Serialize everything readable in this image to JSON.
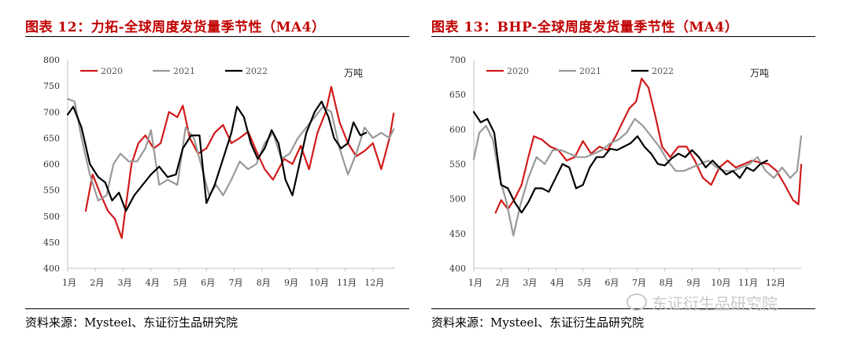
{
  "charts": [
    {
      "title": "图表 12：力拓-全球周度发货量季节性（MA4）",
      "source": "资料来源：Mysteel、东证衍生品研究院"
    },
    {
      "title": "图表 13：BHP-全球周度发货量季节性（MA4）",
      "source": "资料来源：Mysteel、东证衍生品研究院"
    }
  ],
  "watermark": "东证衍生品研究院",
  "chart_data": [
    {
      "type": "line",
      "title": "图表 12：力拓-全球周度发货量季节性（MA4）",
      "unit_label": "万吨",
      "xlabel": "",
      "ylabel": "",
      "ylim": [
        400,
        800
      ],
      "yticks": [
        400,
        450,
        500,
        550,
        600,
        650,
        700,
        750,
        800
      ],
      "xlim": [
        1,
        12.8
      ],
      "xticks": [
        "1月",
        "2月",
        "3月",
        "4月",
        "5月",
        "6月",
        "7月",
        "8月",
        "9月",
        "10月",
        "11月",
        "12月"
      ],
      "grid": false,
      "legend": "top",
      "series": [
        {
          "name": "2020",
          "color": "#d11a1a",
          "x": [
            1.65,
            1.9,
            2.2,
            2.45,
            2.7,
            2.95,
            3.1,
            3.3,
            3.55,
            3.8,
            4.1,
            4.35,
            4.65,
            4.95,
            5.15,
            5.4,
            5.7,
            6.0,
            6.3,
            6.6,
            6.9,
            7.2,
            7.5,
            7.8,
            8.1,
            8.4,
            8.8,
            9.1,
            9.4,
            9.7,
            10.0,
            10.3,
            10.5,
            10.8,
            11.1,
            11.4,
            11.7,
            12.0,
            12.3,
            12.6,
            12.75
          ],
          "y": [
            510,
            580,
            540,
            510,
            495,
            458,
            520,
            600,
            640,
            655,
            630,
            640,
            700,
            690,
            712,
            650,
            620,
            630,
            660,
            675,
            640,
            650,
            662,
            625,
            590,
            570,
            610,
            600,
            635,
            590,
            660,
            700,
            748,
            680,
            640,
            615,
            625,
            640,
            590,
            650,
            697
          ]
        },
        {
          "name": "2021",
          "color": "#999999",
          "x": [
            1.0,
            1.25,
            1.5,
            1.8,
            2.1,
            2.4,
            2.65,
            2.9,
            3.2,
            3.5,
            3.8,
            4.0,
            4.3,
            4.6,
            4.95,
            5.25,
            5.55,
            5.85,
            6.1,
            6.35,
            6.6,
            6.9,
            7.2,
            7.5,
            7.8,
            8.1,
            8.4,
            8.7,
            9.0,
            9.3,
            9.6,
            9.9,
            10.2,
            10.5,
            10.8,
            11.1,
            11.4,
            11.7,
            12.0,
            12.3,
            12.6,
            12.75
          ],
          "y": [
            725,
            720,
            650,
            580,
            530,
            540,
            600,
            620,
            605,
            605,
            630,
            665,
            560,
            570,
            560,
            670,
            650,
            590,
            540,
            560,
            540,
            570,
            605,
            590,
            600,
            640,
            660,
            610,
            620,
            650,
            670,
            690,
            710,
            700,
            630,
            580,
            620,
            670,
            650,
            660,
            650,
            667
          ]
        },
        {
          "name": "2022",
          "color": "#000000",
          "x": [
            1.0,
            1.2,
            1.5,
            1.8,
            2.1,
            2.35,
            2.6,
            2.85,
            3.1,
            3.4,
            3.7,
            4.0,
            4.3,
            4.6,
            4.9,
            5.15,
            5.45,
            5.75,
            6.0,
            6.3,
            6.6,
            6.9,
            7.1,
            7.35,
            7.6,
            7.85,
            8.1,
            8.35,
            8.6,
            8.85,
            9.1,
            9.35,
            9.6,
            9.9,
            10.15,
            10.4,
            10.6,
            10.85,
            11.1,
            11.3,
            11.55,
            11.75
          ],
          "y": [
            695,
            710,
            670,
            600,
            575,
            565,
            530,
            545,
            510,
            540,
            560,
            580,
            595,
            575,
            580,
            630,
            655,
            655,
            525,
            560,
            610,
            660,
            710,
            690,
            640,
            610,
            630,
            665,
            640,
            570,
            540,
            600,
            660,
            700,
            720,
            690,
            650,
            630,
            640,
            680,
            655,
            660
          ]
        }
      ]
    },
    {
      "type": "line",
      "title": "图表 13：BHP-全球周度发货量季节性（MA4）",
      "unit_label": "万吨",
      "xlabel": "",
      "ylabel": "",
      "ylim": [
        400,
        700
      ],
      "yticks": [
        400,
        450,
        500,
        550,
        600,
        650,
        700
      ],
      "xlim": [
        1,
        13.0
      ],
      "xticks": [
        "1月",
        "2月",
        "3月",
        "4月",
        "5月",
        "6月",
        "7月",
        "8月",
        "9月",
        "10月",
        "11月",
        "12月"
      ],
      "grid": false,
      "legend": "top",
      "series": [
        {
          "name": "2020",
          "color": "#d11a1a",
          "x": [
            1.8,
            2.0,
            2.25,
            2.5,
            2.75,
            3.0,
            3.2,
            3.5,
            3.8,
            4.1,
            4.4,
            4.7,
            5.0,
            5.3,
            5.6,
            5.9,
            6.2,
            6.45,
            6.7,
            6.95,
            7.15,
            7.4,
            7.65,
            7.9,
            8.2,
            8.5,
            8.8,
            9.1,
            9.4,
            9.7,
            10.0,
            10.3,
            10.6,
            10.9,
            11.2,
            11.5,
            11.8,
            12.1,
            12.4,
            12.7,
            12.9,
            13.0
          ],
          "y": [
            480,
            498,
            485,
            500,
            520,
            560,
            590,
            585,
            575,
            570,
            555,
            560,
            583,
            565,
            575,
            570,
            590,
            610,
            630,
            640,
            673,
            660,
            620,
            575,
            560,
            575,
            575,
            555,
            530,
            520,
            545,
            555,
            545,
            550,
            555,
            552,
            550,
            540,
            520,
            498,
            492,
            549
          ]
        },
        {
          "name": "2021",
          "color": "#999999",
          "x": [
            1.0,
            1.2,
            1.45,
            1.7,
            1.95,
            2.2,
            2.45,
            2.7,
            3.0,
            3.3,
            3.6,
            3.9,
            4.2,
            4.5,
            4.8,
            5.1,
            5.4,
            5.7,
            6.0,
            6.3,
            6.6,
            6.9,
            7.2,
            7.5,
            7.8,
            8.1,
            8.4,
            8.7,
            9.0,
            9.3,
            9.6,
            9.9,
            10.2,
            10.5,
            10.8,
            11.1,
            11.4,
            11.7,
            12.0,
            12.3,
            12.6,
            12.85,
            13.0
          ],
          "y": [
            557,
            595,
            605,
            585,
            530,
            495,
            447,
            490,
            530,
            560,
            550,
            570,
            570,
            565,
            560,
            560,
            565,
            570,
            580,
            585,
            595,
            615,
            605,
            590,
            575,
            555,
            540,
            540,
            545,
            550,
            555,
            545,
            540,
            540,
            545,
            550,
            560,
            540,
            530,
            545,
            530,
            540,
            590
          ]
        },
        {
          "name": "2022",
          "color": "#000000",
          "x": [
            1.0,
            1.25,
            1.5,
            1.75,
            2.0,
            2.25,
            2.5,
            2.75,
            3.0,
            3.25,
            3.5,
            3.75,
            4.0,
            4.25,
            4.5,
            4.75,
            5.0,
            5.25,
            5.5,
            5.75,
            6.0,
            6.25,
            6.5,
            6.75,
            7.0,
            7.25,
            7.5,
            7.75,
            8.0,
            8.25,
            8.5,
            8.75,
            9.0,
            9.25,
            9.5,
            9.75,
            10.0,
            10.25,
            10.5,
            10.75,
            11.0,
            11.25,
            11.5,
            11.75
          ],
          "y": [
            625,
            610,
            615,
            595,
            520,
            515,
            495,
            480,
            495,
            515,
            515,
            510,
            530,
            550,
            545,
            515,
            520,
            545,
            560,
            560,
            572,
            570,
            575,
            580,
            590,
            575,
            565,
            550,
            548,
            558,
            565,
            560,
            570,
            560,
            545,
            555,
            545,
            535,
            540,
            530,
            545,
            540,
            550,
            555
          ]
        }
      ]
    }
  ]
}
